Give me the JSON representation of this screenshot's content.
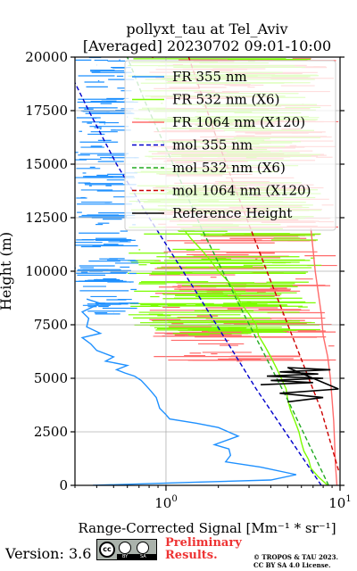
{
  "chart_data": {
    "type": "line",
    "title_line1": "pollyxt_tau at Tel_Aviv",
    "title_line2": "[Averaged] 20230702 09:01-10:00",
    "ylabel": "Height (m)",
    "xlabel": "Range-Corrected Signal [Mm⁻¹ * sr⁻¹]",
    "xscale": "log",
    "xlim": [
      0.3,
      10
    ],
    "ylim": [
      0,
      20000
    ],
    "grid": true,
    "legend_placement": "top-right",
    "yticks": [
      {
        "value": 0,
        "label": "0"
      },
      {
        "value": 2500,
        "label": "2500"
      },
      {
        "value": 5000,
        "label": "5000"
      },
      {
        "value": 7500,
        "label": "7500"
      },
      {
        "value": 10000,
        "label": "10000"
      },
      {
        "value": 12500,
        "label": "12500"
      },
      {
        "value": 15000,
        "label": "15000"
      },
      {
        "value": 17500,
        "label": "17500"
      },
      {
        "value": 20000,
        "label": "20000"
      }
    ],
    "xticks": [
      {
        "value": 1,
        "base": "10",
        "exp": "0"
      },
      {
        "value": 10,
        "base": "10",
        "exp": "1"
      }
    ],
    "series": [
      {
        "name": "FR 355 nm",
        "color": "#1e90ff",
        "style": "solid",
        "points": [
          [
            0.38,
            0
          ],
          [
            1.5,
            150
          ],
          [
            4.0,
            250
          ],
          [
            5.6,
            500
          ],
          [
            3.5,
            850
          ],
          [
            2.2,
            1100
          ],
          [
            2.35,
            1400
          ],
          [
            2.3,
            1700
          ],
          [
            1.9,
            1900
          ],
          [
            2.6,
            2300
          ],
          [
            2.0,
            2700
          ],
          [
            1.5,
            2900
          ],
          [
            1.05,
            3100
          ],
          [
            1.0,
            3300
          ],
          [
            0.92,
            3600
          ],
          [
            0.88,
            4100
          ],
          [
            0.82,
            4400
          ],
          [
            0.76,
            4700
          ],
          [
            0.72,
            4900
          ],
          [
            0.66,
            5100
          ],
          [
            0.58,
            5250
          ],
          [
            0.52,
            5400
          ],
          [
            0.6,
            5600
          ],
          [
            0.45,
            5800
          ],
          [
            0.5,
            6000
          ],
          [
            0.4,
            6300
          ],
          [
            0.37,
            6600
          ],
          [
            0.33,
            6900
          ],
          [
            0.42,
            7100
          ],
          [
            0.35,
            7400
          ],
          [
            0.36,
            7800
          ],
          [
            0.33,
            8100
          ],
          [
            0.42,
            8500
          ],
          [
            0.35,
            8700
          ]
        ]
      },
      {
        "name": "FR 532 nm (X6)",
        "color": "#7cfc00",
        "style": "solid",
        "points": [
          [
            8.5,
            0
          ],
          [
            7.5,
            400
          ],
          [
            6.8,
            800
          ],
          [
            6.6,
            1200
          ],
          [
            6.2,
            1600
          ],
          [
            6.0,
            2000
          ],
          [
            5.8,
            2500
          ],
          [
            5.5,
            3000
          ],
          [
            5.2,
            3500
          ],
          [
            5.0,
            4000
          ],
          [
            4.9,
            4500
          ],
          [
            4.6,
            5000
          ],
          [
            4.3,
            5500
          ],
          [
            4.0,
            6000
          ],
          [
            3.7,
            6500
          ],
          [
            3.4,
            7000
          ],
          [
            3.3,
            7500
          ],
          [
            3.0,
            8000
          ],
          [
            2.7,
            8500
          ],
          [
            2.5,
            9000
          ],
          [
            2.3,
            9500
          ],
          [
            2.0,
            10000
          ],
          [
            1.8,
            10500
          ],
          [
            1.6,
            11000
          ],
          [
            1.4,
            11500
          ],
          [
            1.25,
            12000
          ]
        ]
      },
      {
        "name": "FR 1064 nm (X120)",
        "color": "#ff6b6b",
        "style": "solid",
        "points": [
          [
            9.6,
            0
          ],
          [
            9.4,
            1000
          ],
          [
            9.3,
            2000
          ],
          [
            9.2,
            3000
          ],
          [
            9.0,
            4000
          ],
          [
            8.8,
            5000
          ],
          [
            8.5,
            6000
          ],
          [
            8.0,
            7000
          ],
          [
            7.8,
            8000
          ],
          [
            7.5,
            9000
          ],
          [
            7.2,
            10000
          ],
          [
            7.0,
            11000
          ],
          [
            6.8,
            12000
          ]
        ]
      },
      {
        "name": "mol 355 nm",
        "color": "#0000cc",
        "style": "dashed",
        "points": [
          [
            7.8,
            0
          ],
          [
            3.3,
            4500
          ],
          [
            1.5,
            9000
          ],
          [
            0.8,
            12500
          ],
          [
            0.52,
            15000
          ],
          [
            0.36,
            17500
          ],
          [
            0.3,
            18800
          ]
        ]
      },
      {
        "name": "mol 532 nm (X6)",
        "color": "#22aa22",
        "style": "dashed",
        "points": [
          [
            8.6,
            0
          ],
          [
            5.0,
            4000
          ],
          [
            2.8,
            8000
          ],
          [
            1.6,
            12000
          ],
          [
            1.1,
            15000
          ],
          [
            0.75,
            18000
          ],
          [
            0.6,
            20000
          ]
        ]
      },
      {
        "name": "mol 1064 nm (X120)",
        "color": "#cc0000",
        "style": "dashed",
        "points": [
          [
            9.8,
            700
          ],
          [
            7.8,
            3500
          ],
          [
            5.6,
            6500
          ],
          [
            3.8,
            10000
          ],
          [
            2.6,
            13500
          ],
          [
            1.9,
            16500
          ],
          [
            1.35,
            20000
          ]
        ]
      },
      {
        "name": "Reference Height",
        "color": "#000000",
        "style": "solid",
        "points": [
          [
            3.5,
            4700
          ],
          [
            7.0,
            4800
          ],
          [
            4.0,
            4900
          ],
          [
            8.0,
            5000
          ],
          [
            3.8,
            5100
          ],
          [
            7.5,
            5200
          ],
          [
            4.5,
            5300
          ],
          [
            8.8,
            5400
          ],
          [
            5.0,
            5500
          ],
          [
            9.8,
            4500
          ],
          [
            4.5,
            4300
          ],
          [
            8.0,
            4100
          ],
          [
            5.0,
            3900
          ]
        ]
      }
    ]
  },
  "footer": {
    "version": "Version: 3.6",
    "cc_strip_by": "BY",
    "cc_strip_sa": "SA",
    "prelim_line1": "Preliminary",
    "prelim_line2": "Results.",
    "copyright_line1": "© TROPOS & TAU 2023.",
    "copyright_line2": "CC BY SA 4.0 License."
  }
}
